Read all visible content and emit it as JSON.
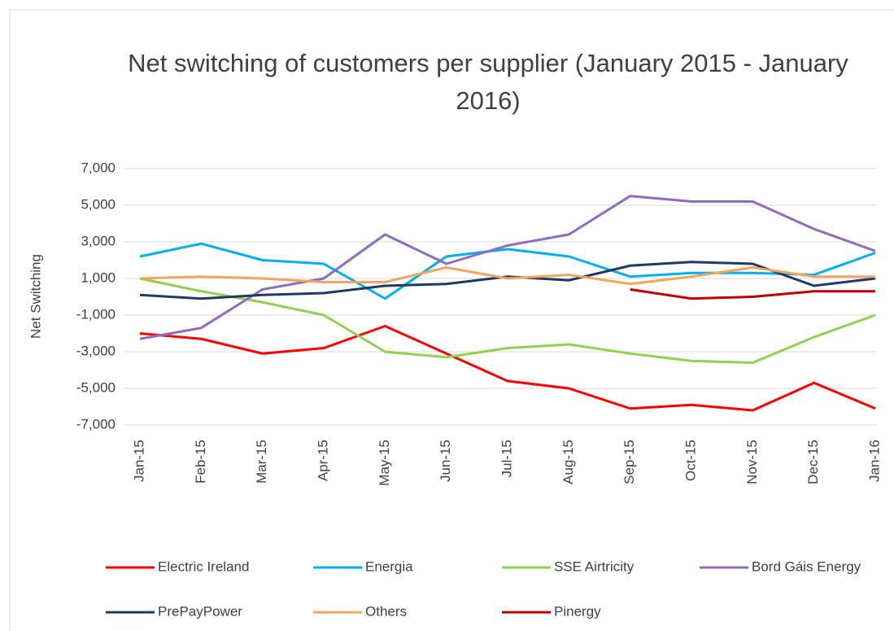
{
  "chart_data": {
    "type": "line",
    "title": "Net switching of customers per supplier  (January 2015 - January 2016)",
    "y_label": "Net Switching",
    "categories": [
      "Jan-15",
      "Feb-15",
      "Mar-15",
      "Apr-15",
      "May-15",
      "Jun-15",
      "Jul-15",
      "Aug-15",
      "Sep-15",
      "Oct-15",
      "Nov-15",
      "Dec-15",
      "Jan-16"
    ],
    "ylim": [
      -7000,
      7000
    ],
    "yticks": [
      {
        "value": -7000,
        "label": "-7,000"
      },
      {
        "value": -5000,
        "label": "-5,000"
      },
      {
        "value": -3000,
        "label": "-3,000"
      },
      {
        "value": -1000,
        "label": "-1,000"
      },
      {
        "value": 1000,
        "label": "1,000"
      },
      {
        "value": 3000,
        "label": "3,000"
      },
      {
        "value": 5000,
        "label": "5,000"
      },
      {
        "value": 7000,
        "label": "7,000"
      }
    ],
    "grid": true,
    "legend": "bottom",
    "series": [
      {
        "name": "Electric Ireland",
        "color": "#ff0000",
        "values": [
          -2000,
          -2300,
          -3100,
          -2800,
          -1600,
          -3100,
          -4600,
          -5000,
          -6100,
          -5900,
          -6200,
          -4700,
          -6100
        ]
      },
      {
        "name": "Energia",
        "color": "#00b0f0",
        "values": [
          2200,
          2900,
          2000,
          1800,
          -100,
          2200,
          2600,
          2200,
          1100,
          1300,
          1300,
          1200,
          2400
        ]
      },
      {
        "name": "SSE Airtricity",
        "color": "#92d050",
        "values": [
          1000,
          300,
          -300,
          -1000,
          -3000,
          -3300,
          -2800,
          -2600,
          -3100,
          -3500,
          -3600,
          -2200,
          -1000
        ]
      },
      {
        "name": "Bord Gáis Energy",
        "color": "#8e6cbf",
        "values": [
          -2300,
          -1700,
          400,
          1000,
          3400,
          1800,
          2800,
          3400,
          5500,
          5200,
          5200,
          3700,
          2500
        ]
      },
      {
        "name": "PrePayPower",
        "color": "#1f3864",
        "values": [
          100,
          -100,
          100,
          200,
          600,
          700,
          1100,
          900,
          1700,
          1900,
          1800,
          600,
          1000
        ]
      },
      {
        "name": "Others",
        "color": "#f4a460",
        "values": [
          1000,
          1100,
          1000,
          800,
          800,
          1600,
          1000,
          1200,
          700,
          1100,
          1600,
          1100,
          1100
        ]
      },
      {
        "name": "Pinergy",
        "color": "#c00000",
        "values": [
          null,
          null,
          null,
          null,
          null,
          null,
          null,
          null,
          400,
          -100,
          0,
          300,
          300
        ]
      }
    ]
  }
}
